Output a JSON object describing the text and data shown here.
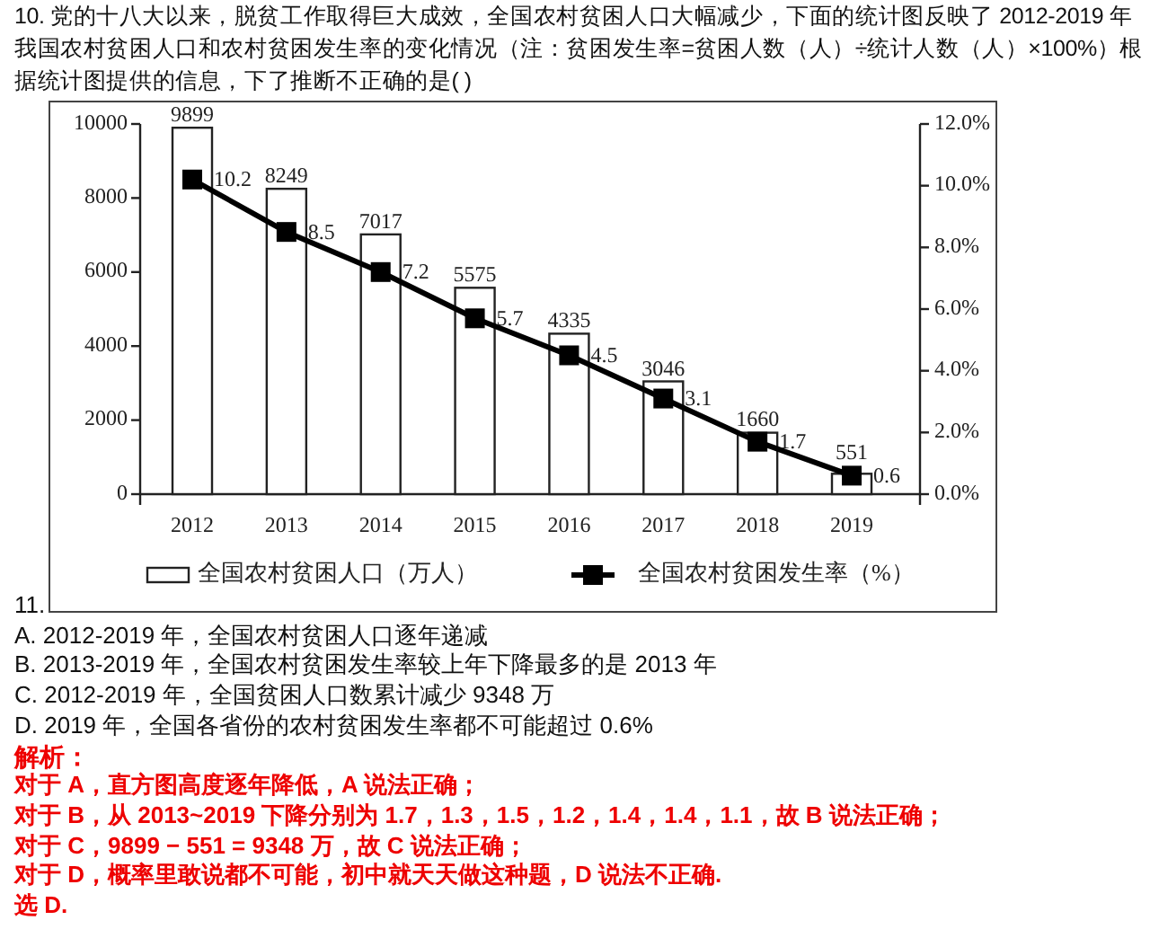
{
  "chart_data": {
    "type": "bar",
    "title": "10. 党的十八大以来，脱贫工作取得巨大成效，全国农村贫困人口大幅减少，下面的统计图反映了 2012-2019 年我国农村贫困人口和农村贫困发生率的变化情况（注：贫困发生率=贫困人数（人）÷统计人数（人）×100%）根据统计图提供的信息，下了推断不正确的是(      )",
    "categories": [
      "2012",
      "2013",
      "2014",
      "2015",
      "2016",
      "2017",
      "2018",
      "2019"
    ],
    "series": [
      {
        "name": "全国农村贫困人口（万人）",
        "color": "#ffffff",
        "values": [
          9899,
          8249,
          7017,
          5575,
          4335,
          3046,
          1660,
          551
        ]
      },
      {
        "name": "全国农村贫困发生率（%）",
        "type": "line",
        "axis": "y2",
        "color": "#000000",
        "values": [
          10.2,
          8.5,
          7.2,
          5.7,
          4.5,
          3.1,
          1.7,
          0.6
        ]
      }
    ],
    "ylim": [
      0,
      10000
    ],
    "yticks": [
      0,
      2000,
      4000,
      6000,
      8000,
      10000
    ],
    "y2lim": [
      0,
      12
    ],
    "y2ticks": [
      {
        "value": 0,
        "label": "0.0%"
      },
      {
        "value": 2,
        "label": "2.0%"
      },
      {
        "value": 4,
        "label": "4.0%"
      },
      {
        "value": 6,
        "label": "6.0%"
      },
      {
        "value": 8,
        "label": "8.0%"
      },
      {
        "value": 10,
        "label": "10.0%"
      },
      {
        "value": 12,
        "label": "12.0%"
      }
    ],
    "data_labels": true,
    "legend": "bottom",
    "marker": "square",
    "annotations": [
      "11.",
      "A. 2012-2019 年，全国农村贫困人口逐年递减",
      "B. 2013-2019 年，全国农村贫困发生率较上年下降最多的是 2013 年",
      "C. 2012-2019 年，全国贫困人口数累计减少 9348 万",
      "D. 2019 年，全国各省份的农村贫困发生率都不可能超过 0.6%",
      "解析：",
      "对于 A，直方图高度逐年降低，A 说法正确；",
      "对于 B，从 2013~2019 下降分别为 1.7，1.3，1.5，1.2，1.4，1.4，1.1，故 B 说法正确；",
      "对于 C，9899 − 551 = 9348 万，故 C 说法正确；",
      "对于 D，概率里敢说都不可能，初中就天天做这种题，D 说法不正确.",
      "选 D."
    ]
  }
}
